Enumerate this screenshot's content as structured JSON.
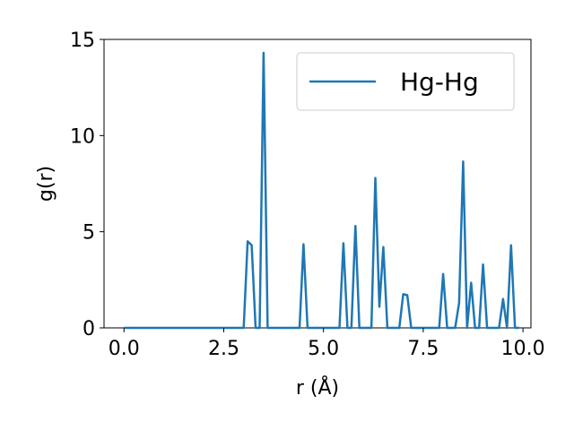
{
  "chart_data": {
    "type": "line",
    "xlabel": "r (Å)",
    "ylabel": "g(r)",
    "xlim": [
      -0.5,
      10.2
    ],
    "ylim": [
      0,
      15
    ],
    "xticks": [
      "0.0",
      "2.5",
      "5.0",
      "7.5",
      "10.0"
    ],
    "yticks": [
      "0",
      "5",
      "10",
      "15"
    ],
    "grid": false,
    "legend_position": "top-right",
    "series": [
      {
        "name": "Hg-Hg",
        "color": "#1f77b4",
        "x": [
          0.0,
          3.0,
          3.1,
          3.2,
          3.3,
          3.4,
          3.5,
          3.6,
          3.7,
          4.4,
          4.5,
          4.6,
          5.4,
          5.5,
          5.6,
          5.7,
          5.8,
          5.9,
          6.2,
          6.3,
          6.4,
          6.5,
          6.6,
          6.9,
          7.0,
          7.1,
          7.2,
          7.4,
          7.9,
          8.0,
          8.1,
          8.3,
          8.4,
          8.5,
          8.6,
          8.7,
          8.8,
          8.9,
          9.0,
          9.1,
          9.4,
          9.5,
          9.6,
          9.7,
          9.8,
          9.9
        ],
        "y": [
          0,
          0,
          4.5,
          4.3,
          0,
          0,
          14.3,
          0,
          0,
          0,
          4.35,
          0,
          0,
          4.4,
          0,
          0,
          5.3,
          0,
          0,
          7.8,
          1.1,
          4.2,
          0,
          0,
          1.75,
          1.7,
          0,
          0,
          0,
          2.8,
          0,
          0,
          1.3,
          8.65,
          0,
          2.35,
          0,
          0,
          3.3,
          0,
          0,
          1.5,
          0,
          4.3,
          0,
          0
        ]
      }
    ]
  }
}
